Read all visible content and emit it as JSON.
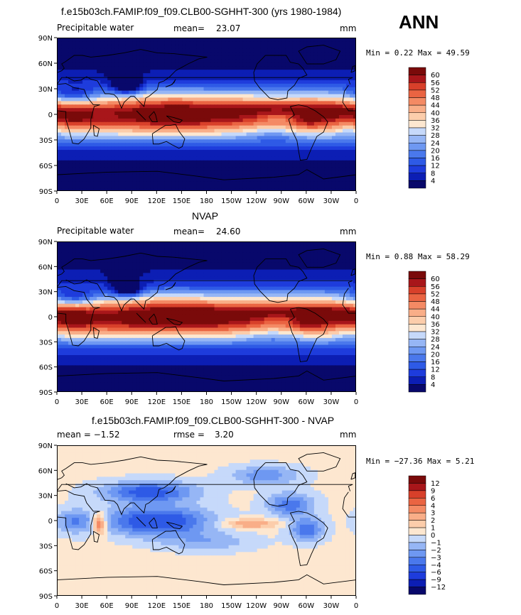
{
  "header": {
    "title_top": "f.e15b03ch.FAMIP.f09_f09.CLB00-SGHHT-300 (yrs 1980-1984)",
    "season": "ANN"
  },
  "panels": [
    {
      "title": "f.e15b03ch.FAMIP.f09_f09.CLB00-SGHHT-300 (yrs 1980-1984)",
      "left_label": "Precipitable water",
      "stat_label": "mean=",
      "stat_value": "23.07",
      "unit": "mm",
      "minmax": "Min =    0.22 Max =   49.59",
      "colorbar": [
        "60",
        "56",
        "52",
        "48",
        "44",
        "40",
        "36",
        "32",
        "28",
        "24",
        "20",
        "16",
        "12",
        "8",
        "4"
      ]
    },
    {
      "title": "NVAP",
      "left_label": "Precipitable water",
      "stat_label": "mean=",
      "stat_value": "24.60",
      "unit": "mm",
      "minmax": "Min =    0.88 Max =   58.29",
      "colorbar": [
        "60",
        "56",
        "52",
        "48",
        "44",
        "40",
        "36",
        "32",
        "28",
        "24",
        "20",
        "16",
        "12",
        "8",
        "4"
      ]
    },
    {
      "title": "f.e15b03ch.FAMIP.f09_f09.CLB00-SGHHT-300 - NVAP",
      "left_label": "mean =    −1.52",
      "stat_label": "rmse =",
      "stat_value": "3.20",
      "unit": "mm",
      "minmax": "Min = −27.36 Max =    5.21",
      "colorbar": [
        "12",
        "9",
        "6",
        "4",
        "3",
        "2",
        "1",
        "0",
        "−1",
        "−2",
        "−3",
        "−4",
        "−6",
        "−9",
        "−12"
      ]
    }
  ],
  "axes": {
    "lat_labels": [
      "90N",
      "60N",
      "30N",
      "0",
      "30S",
      "60S",
      "90S"
    ],
    "lon_labels": [
      "0",
      "30E",
      "60E",
      "90E",
      "120E",
      "150E",
      "180",
      "150W",
      "120W",
      "90W",
      "60W",
      "30W",
      "0"
    ]
  },
  "colors": {
    "seq": [
      "#08086b",
      "#0c1eb4",
      "#1e3cdc",
      "#2e5ae6",
      "#4a78ec",
      "#6e98f2",
      "#96b6f5",
      "#c6d9fa",
      "#fde7d0",
      "#fccdab",
      "#f9ae88",
      "#f48a64",
      "#ea6442",
      "#d8402a",
      "#a8161a",
      "#7a0a0a"
    ],
    "diff": [
      "#08086b",
      "#0c1eb4",
      "#1e3cdc",
      "#2e5ae6",
      "#4a78ec",
      "#6e98f2",
      "#96b6f5",
      "#c6d9fa",
      "#fde7d0",
      "#fccdab",
      "#f9ae88",
      "#f48a64",
      "#ea6442",
      "#d8402a",
      "#a8161a",
      "#7a0a0a"
    ]
  }
}
